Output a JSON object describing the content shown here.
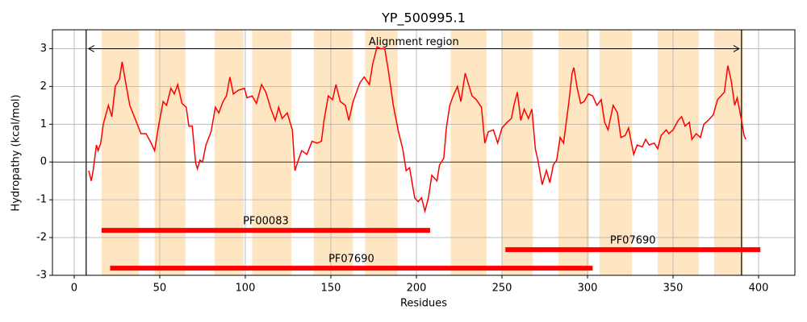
{
  "chart_data": {
    "type": "line",
    "title": "YP_500995.1",
    "x_label": "Residues",
    "y_label": "Hydropathy (kcal/mol)",
    "color": "#ff0000",
    "band_color": "#ffe6c2",
    "xlim": [
      -12.7,
      421.2
    ],
    "ylim": [
      -3,
      3.5
    ],
    "xticks": [
      0,
      50,
      100,
      150,
      200,
      250,
      300,
      350,
      400
    ],
    "yticks": [
      -3,
      -2,
      -1,
      0,
      1,
      2,
      3
    ],
    "grid": true,
    "hline": 0,
    "x": [
      8.5,
      10,
      11,
      13,
      14,
      15.5,
      17,
      20,
      22,
      24,
      26.5,
      28,
      30.5,
      32.5,
      36,
      39,
      42,
      45,
      47,
      49.5,
      52,
      54,
      56.5,
      58.5,
      60.5,
      63,
      65.5,
      67,
      69,
      71,
      72,
      73.5,
      75,
      77,
      80,
      82.5,
      84.5,
      87,
      89,
      91,
      93,
      96,
      99.5,
      101,
      104,
      106.5,
      109.5,
      112,
      115,
      117.5,
      119.5,
      121.5,
      124.5,
      127.5,
      129,
      131,
      133,
      136,
      139,
      142,
      144.5,
      146,
      148.5,
      151,
      153,
      155.5,
      158.5,
      160.5,
      163,
      167,
      169.5,
      172.5,
      174.5,
      177,
      179,
      181.5,
      183.5,
      186.5,
      189.5,
      192,
      194,
      196,
      199,
      201,
      203,
      205,
      207,
      209,
      212,
      213.5,
      216,
      217.5,
      219.5,
      221.5,
      224,
      226,
      228.5,
      230.5,
      232.5,
      235,
      238,
      240,
      242,
      245,
      247.5,
      250,
      253,
      255.5,
      257,
      259,
      261,
      263,
      265.5,
      267.5,
      269.5,
      271,
      273.5,
      276,
      278,
      280,
      282,
      284,
      286,
      289,
      291,
      292,
      294,
      296,
      298,
      300.5,
      303,
      305.5,
      308,
      310,
      312,
      315,
      317.5,
      319.5,
      322,
      324,
      327,
      329,
      332,
      334,
      336,
      339,
      341,
      343,
      346,
      347.5,
      350,
      353,
      355,
      357,
      359.5,
      361,
      363.5,
      366,
      368,
      370.5,
      373.5,
      376,
      378,
      380,
      382,
      384,
      386,
      387.5,
      390,
      391.5,
      392.5
    ],
    "values": [
      -0.23,
      -0.5,
      -0.25,
      0.45,
      0.3,
      0.5,
      1.0,
      1.5,
      1.2,
      2.0,
      2.2,
      2.65,
      2.0,
      1.5,
      1.1,
      0.75,
      0.75,
      0.5,
      0.3,
      1.0,
      1.6,
      1.5,
      1.95,
      1.8,
      2.05,
      1.55,
      1.45,
      0.95,
      0.95,
      -0.03,
      -0.18,
      0.05,
      0,
      0.45,
      0.8,
      1.45,
      1.3,
      1.6,
      1.75,
      2.25,
      1.8,
      1.9,
      1.95,
      1.7,
      1.75,
      1.55,
      2.05,
      1.85,
      1.4,
      1.1,
      1.45,
      1.15,
      1.3,
      0.85,
      -0.23,
      0.05,
      0.3,
      0.2,
      0.55,
      0.5,
      0.55,
      1.1,
      1.75,
      1.65,
      2.05,
      1.6,
      1.5,
      1.1,
      1.6,
      2.1,
      2.25,
      2.05,
      2.6,
      3.05,
      3.0,
      3.0,
      2.45,
      1.5,
      0.8,
      0.35,
      -0.23,
      -0.15,
      -0.95,
      -1.05,
      -0.95,
      -1.3,
      -0.95,
      -0.35,
      -0.5,
      -0.08,
      0.1,
      0.9,
      1.5,
      1.75,
      2.0,
      1.6,
      2.35,
      2.05,
      1.75,
      1.65,
      1.45,
      0.5,
      0.8,
      0.85,
      0.5,
      0.9,
      1.05,
      1.15,
      1.5,
      1.85,
      1.1,
      1.4,
      1.15,
      1.4,
      0.35,
      0.05,
      -0.6,
      -0.22,
      -0.55,
      -0.08,
      0.05,
      0.65,
      0.5,
      1.55,
      2.35,
      2.5,
      1.95,
      1.55,
      1.6,
      1.8,
      1.75,
      1.5,
      1.65,
      1.05,
      0.85,
      1.5,
      1.3,
      0.65,
      0.7,
      0.9,
      0.2,
      0.45,
      0.4,
      0.6,
      0.45,
      0.5,
      0.35,
      0.7,
      0.85,
      0.75,
      0.85,
      1.1,
      1.2,
      0.95,
      1.05,
      0.6,
      0.75,
      0.65,
      1.0,
      1.1,
      1.25,
      1.65,
      1.75,
      1.85,
      2.55,
      2.15,
      1.5,
      1.7,
      1.1,
      0.7,
      0.6
    ],
    "shaded_regions": [
      [
        16,
        38
      ],
      [
        47,
        65
      ],
      [
        82,
        99
      ],
      [
        104,
        127
      ],
      [
        140,
        163
      ],
      [
        170,
        189
      ],
      [
        220,
        241
      ],
      [
        250,
        268
      ],
      [
        283,
        301
      ],
      [
        307,
        326
      ],
      [
        341,
        365
      ],
      [
        374,
        391
      ]
    ],
    "alignment_region": {
      "label": "Alignment region",
      "start": 7,
      "end": 390,
      "y": 3
    },
    "domains": [
      {
        "label": "PF00083",
        "start": 16,
        "end": 208,
        "y": -1.81
      },
      {
        "label": "PF07690",
        "start": 252,
        "end": 401,
        "y": -2.32
      },
      {
        "label": "PF07690",
        "start": 21,
        "end": 303,
        "y": -2.81
      }
    ]
  }
}
